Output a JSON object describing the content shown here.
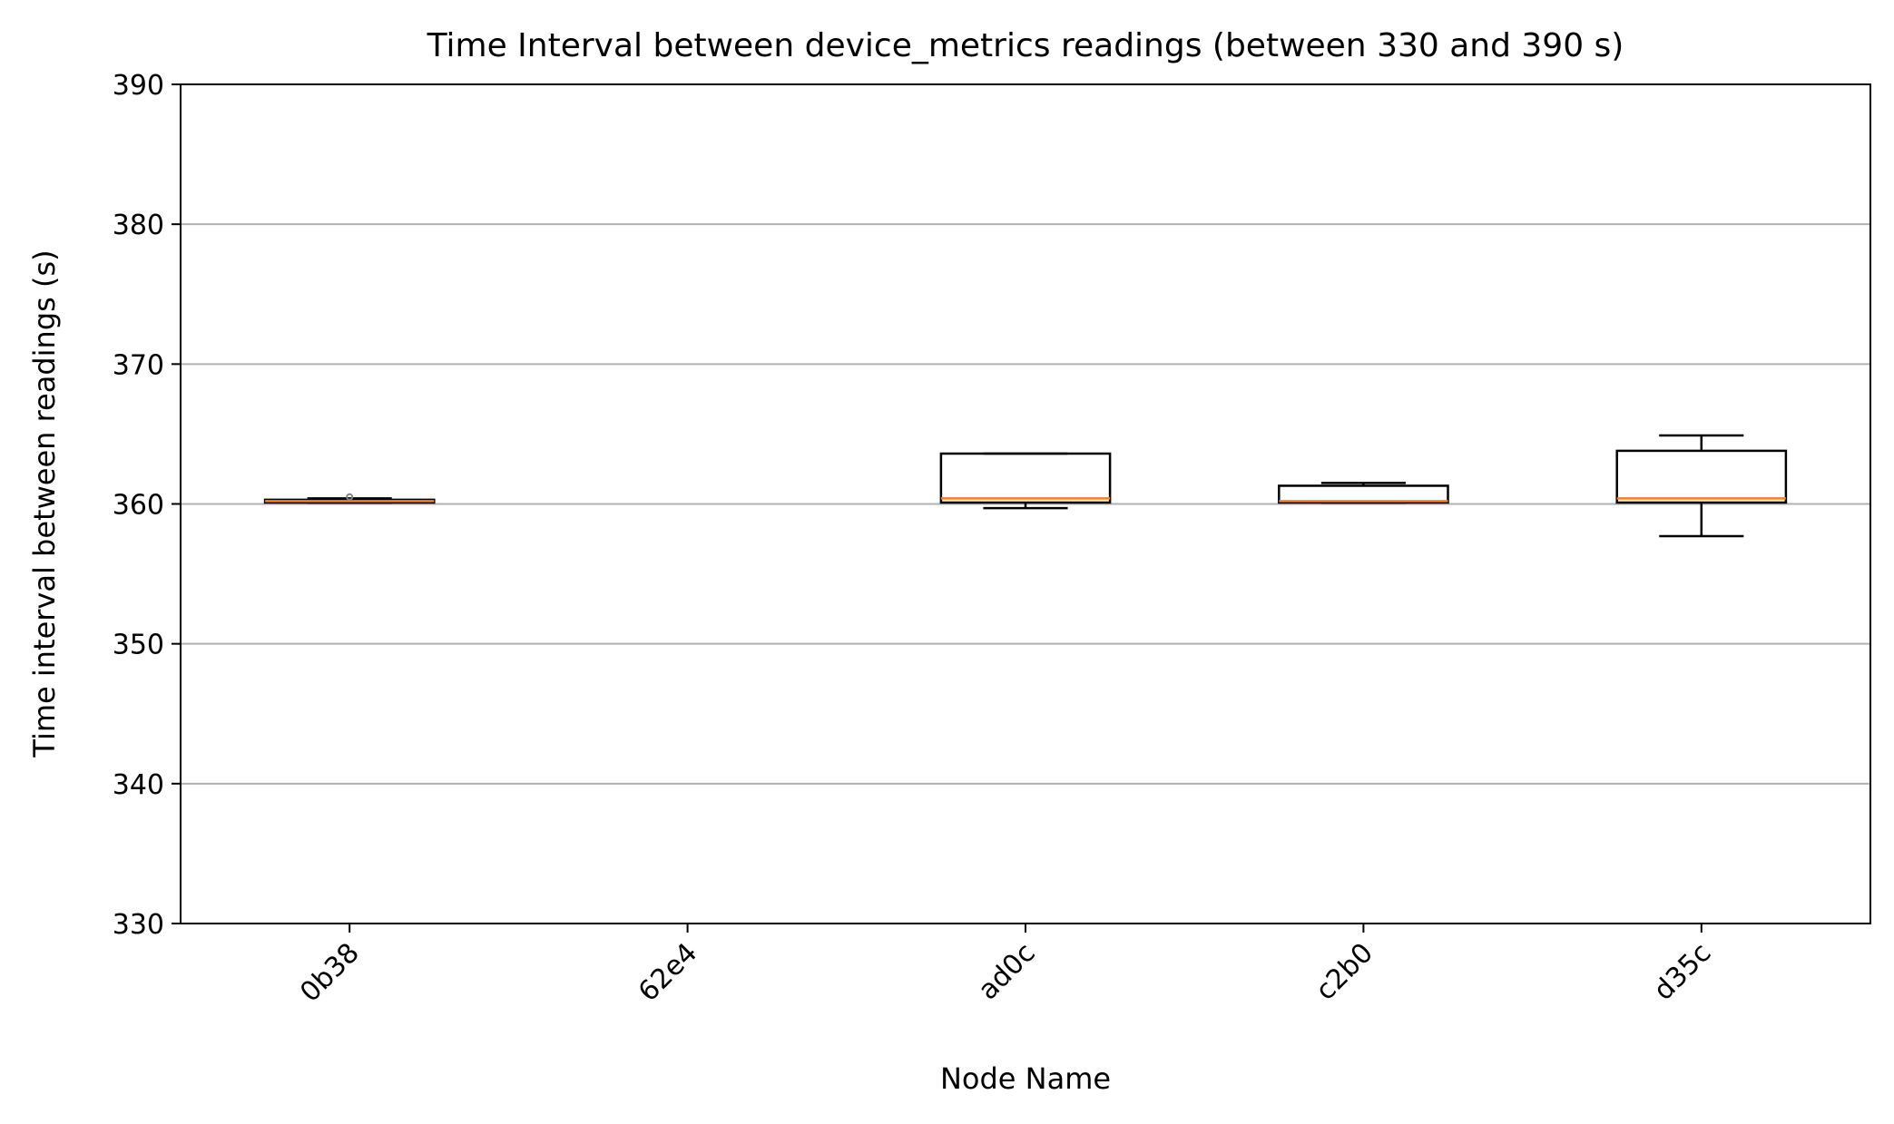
{
  "chart_data": {
    "type": "box",
    "title": "Time Interval between device_metrics readings (between 330 and 390 s)",
    "xlabel": "Node Name",
    "ylabel": "Time interval between readings (s)",
    "ylim": [
      330,
      390
    ],
    "yticks": [
      330,
      340,
      350,
      360,
      370,
      380,
      390
    ],
    "grid": "y",
    "categories": [
      "0b38",
      "62e4",
      "ad0c",
      "c2b0",
      "d35c"
    ],
    "boxes": [
      {
        "category": "0b38",
        "whislo": 360.1,
        "q1": 360.1,
        "med": 360.2,
        "q3": 360.3,
        "whishi": 360.4,
        "fliers": [
          360.5
        ]
      },
      {
        "category": "62e4"
      },
      {
        "category": "ad0c",
        "whislo": 359.7,
        "q1": 360.1,
        "med": 360.4,
        "q3": 363.6,
        "whishi": 363.6,
        "fliers": []
      },
      {
        "category": "c2b0",
        "whislo": 360.1,
        "q1": 360.1,
        "med": 360.2,
        "q3": 361.3,
        "whishi": 361.5,
        "fliers": []
      },
      {
        "category": "d35c",
        "whislo": 357.7,
        "q1": 360.1,
        "med": 360.4,
        "q3": 363.8,
        "whishi": 364.9,
        "fliers": []
      }
    ],
    "colors": {
      "box": "#000000",
      "median": "#ff7f0e",
      "grid": "#b0b0b0",
      "flier": "#808080"
    }
  }
}
